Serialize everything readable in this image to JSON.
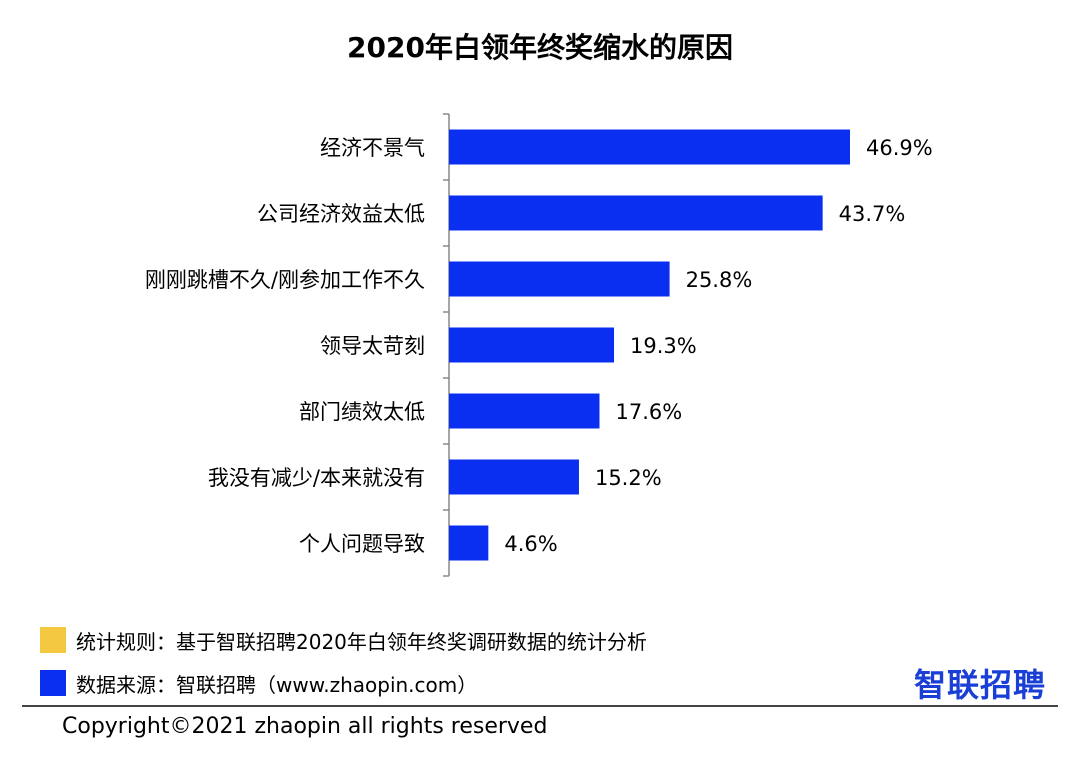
{
  "chart_data": {
    "type": "bar",
    "orientation": "horizontal",
    "title": "2020年白领年终奖缩水的原因",
    "categories": [
      "经济不景气",
      "公司经济效益太低",
      "刚刚跳槽不久/刚参加工作不久",
      "领导太苛刻",
      "部门绩效太低",
      "我没有减少/本来就没有",
      "个人问题导致"
    ],
    "values": [
      46.9,
      43.7,
      25.8,
      19.3,
      17.6,
      15.2,
      4.6
    ],
    "value_labels": [
      "46.9%",
      "43.7%",
      "25.8%",
      "19.3%",
      "17.6%",
      "15.2%",
      "4.6%"
    ],
    "bar_color": "#0a2ff0",
    "xlim": [
      0,
      50
    ],
    "grid": false
  },
  "notes": [
    {
      "label": "统计规则：基于智联招聘2020年白领年终奖调研数据的统计分析",
      "color": "#f5c842"
    },
    {
      "label": "数据来源：智联招聘（www.zhaopin.com）",
      "color": "#0a2ff0"
    }
  ],
  "brand": {
    "text": "智联招聘",
    "color": "#1a3fd6"
  },
  "copyright": "Copyright©2021 zhaopin all rights reserved"
}
